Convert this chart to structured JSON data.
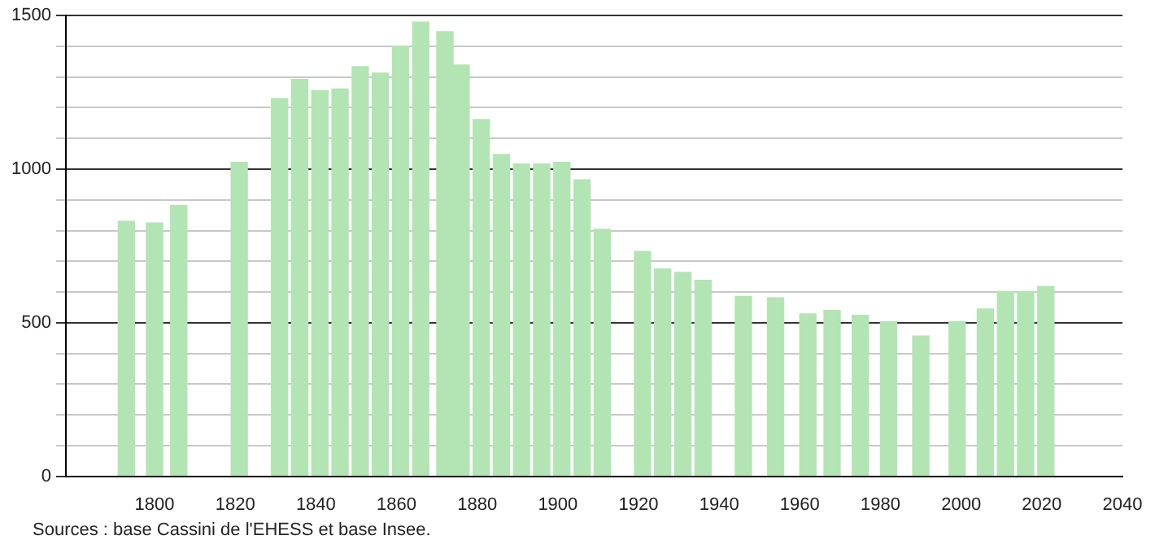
{
  "chart_data": {
    "type": "bar",
    "x": [
      1793,
      1800,
      1806,
      1821,
      1831,
      1836,
      1841,
      1846,
      1851,
      1856,
      1861,
      1866,
      1872,
      1876,
      1881,
      1886,
      1891,
      1896,
      1901,
      1906,
      1911,
      1921,
      1926,
      1931,
      1936,
      1946,
      1954,
      1962,
      1968,
      1975,
      1982,
      1990,
      1999,
      2006,
      2011,
      2016,
      2021
    ],
    "values": [
      830,
      825,
      882,
      1022,
      1230,
      1292,
      1256,
      1261,
      1334,
      1313,
      1401,
      1479,
      1448,
      1339,
      1162,
      1048,
      1017,
      1017,
      1022,
      965,
      804,
      732,
      675,
      664,
      638,
      586,
      581,
      529,
      540,
      524,
      503,
      457,
      503,
      545,
      602,
      602,
      618
    ],
    "color": "#b3e4b3",
    "xlim": [
      1778,
      2040
    ],
    "xticks": [
      1800,
      1820,
      1840,
      1860,
      1880,
      1900,
      1920,
      1940,
      1960,
      1980,
      2000,
      2020,
      2040
    ],
    "ylim": [
      0,
      1500
    ],
    "yticks": [
      0,
      {
        "value": 100,
        "label": null
      },
      {
        "value": 200,
        "label": null
      },
      {
        "value": 300,
        "label": null
      },
      {
        "value": 400,
        "label": null
      },
      500,
      {
        "value": 600,
        "label": null
      },
      {
        "value": 700,
        "label": null
      },
      {
        "value": 800,
        "label": null
      },
      {
        "value": 900,
        "label": null
      },
      1000,
      {
        "value": 1100,
        "label": null
      },
      {
        "value": 1200,
        "label": null
      },
      {
        "value": 1300,
        "label": null
      },
      {
        "value": 1400,
        "label": null
      },
      1500
    ],
    "grid": "y",
    "annotations": [
      "Sources : base Cassini de l'EHESS et base Insee."
    ]
  }
}
